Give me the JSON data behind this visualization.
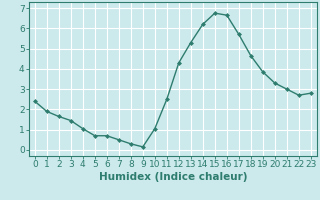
{
  "x": [
    0,
    1,
    2,
    3,
    4,
    5,
    6,
    7,
    8,
    9,
    10,
    11,
    12,
    13,
    14,
    15,
    16,
    17,
    18,
    19,
    20,
    21,
    22,
    23
  ],
  "y": [
    2.4,
    1.9,
    1.65,
    1.45,
    1.05,
    0.7,
    0.7,
    0.5,
    0.3,
    0.15,
    1.05,
    2.5,
    4.3,
    5.3,
    6.2,
    6.75,
    6.65,
    5.7,
    4.65,
    3.85,
    3.3,
    3.0,
    2.7,
    2.8
  ],
  "line_color": "#2e7d6e",
  "marker": "D",
  "marker_size": 2.0,
  "bg_color": "#cce9eb",
  "grid_color": "#ffffff",
  "xlabel": "Humidex (Indice chaleur)",
  "xlim": [
    -0.5,
    23.5
  ],
  "ylim": [
    -0.3,
    7.3
  ],
  "xticks": [
    0,
    1,
    2,
    3,
    4,
    5,
    6,
    7,
    8,
    9,
    10,
    11,
    12,
    13,
    14,
    15,
    16,
    17,
    18,
    19,
    20,
    21,
    22,
    23
  ],
  "yticks": [
    0,
    1,
    2,
    3,
    4,
    5,
    6,
    7
  ],
  "xlabel_fontsize": 7.5,
  "tick_fontsize": 6.5,
  "tick_color": "#2e7d6e",
  "axis_color": "#2e7d6e",
  "line_width": 1.0
}
